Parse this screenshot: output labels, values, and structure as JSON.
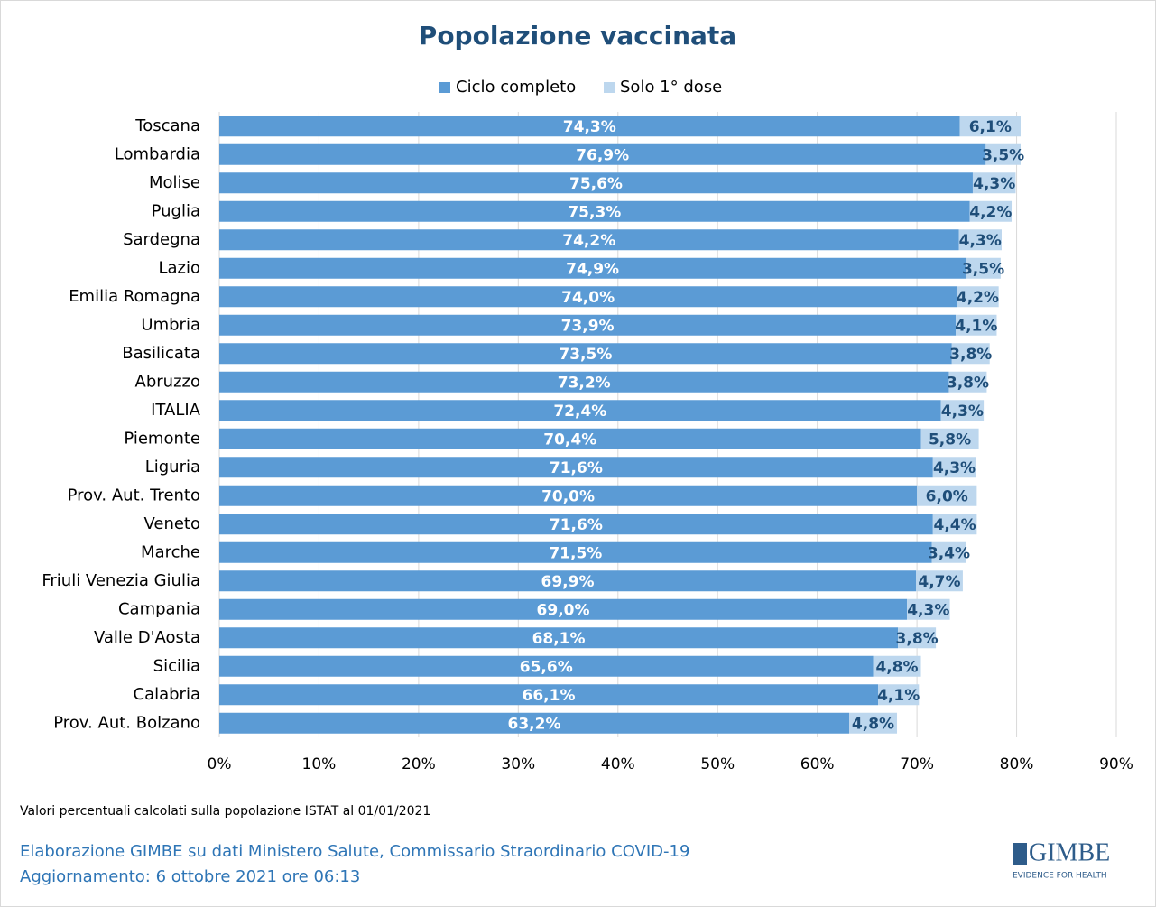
{
  "chart_data": {
    "type": "stacked-bar-horizontal",
    "title": "Popolazione vaccinata",
    "categories": [
      "Toscana",
      "Lombardia",
      "Molise",
      "Puglia",
      "Sardegna",
      "Lazio",
      "Emilia Romagna",
      "Umbria",
      "Basilicata",
      "Abruzzo",
      "ITALIA",
      "Piemonte",
      "Liguria",
      "Prov. Aut. Trento",
      "Veneto",
      "Marche",
      "Friuli Venezia Giulia",
      "Campania",
      "Valle D'Aosta",
      "Sicilia",
      "Calabria",
      "Prov. Aut. Bolzano"
    ],
    "series": [
      {
        "name": "Ciclo completo",
        "color": "#5b9bd5",
        "label_color": "#ffffff",
        "values": [
          74.3,
          76.9,
          75.6,
          75.3,
          74.2,
          74.9,
          74.0,
          73.9,
          73.5,
          73.2,
          72.4,
          70.4,
          71.6,
          70.0,
          71.6,
          71.5,
          69.9,
          69.0,
          68.1,
          65.6,
          66.1,
          63.2
        ],
        "value_labels": [
          "74,3%",
          "76,9%",
          "75,6%",
          "75,3%",
          "74,2%",
          "74,9%",
          "74,0%",
          "73,9%",
          "73,5%",
          "73,2%",
          "72,4%",
          "70,4%",
          "71,6%",
          "70,0%",
          "71,6%",
          "71,5%",
          "69,9%",
          "69,0%",
          "68,1%",
          "65,6%",
          "66,1%",
          "63,2%"
        ]
      },
      {
        "name": "Solo 1° dose",
        "color": "#bdd7ee",
        "label_color": "#1f4e79",
        "values": [
          6.1,
          3.5,
          4.3,
          4.2,
          4.3,
          3.5,
          4.2,
          4.1,
          3.8,
          3.8,
          4.3,
          5.8,
          4.3,
          6.0,
          4.4,
          3.4,
          4.7,
          4.3,
          3.8,
          4.8,
          4.1,
          4.8
        ],
        "value_labels": [
          "6,1%",
          "3,5%",
          "4,3%",
          "4,2%",
          "4,3%",
          "3,5%",
          "4,2%",
          "4,1%",
          "3,8%",
          "3,8%",
          "4,3%",
          "5,8%",
          "4,3%",
          "6,0%",
          "4,4%",
          "3,4%",
          "4,7%",
          "4,3%",
          "3,8%",
          "4,8%",
          "4,1%",
          "4,8%"
        ]
      }
    ],
    "xlim": [
      0,
      90
    ],
    "xticks": [
      {
        "value": 0,
        "label": "0%"
      },
      {
        "value": 10,
        "label": "10%"
      },
      {
        "value": 20,
        "label": "20%"
      },
      {
        "value": 30,
        "label": "30%"
      },
      {
        "value": 40,
        "label": "40%"
      },
      {
        "value": 50,
        "label": "50%"
      },
      {
        "value": 60,
        "label": "60%"
      },
      {
        "value": 70,
        "label": "70%"
      },
      {
        "value": 80,
        "label": "80%"
      },
      {
        "value": 90,
        "label": "90%"
      }
    ],
    "grid": true,
    "legend": "top",
    "note": "Valori percentuali calcolati sulla popolazione ISTAT al 01/01/2021",
    "source": "Elaborazione GIMBE su dati Ministero Salute, Commissario Straordinario COVID-19",
    "update": "Aggiornamento: 6 ottobre 2021 ore 06:13"
  },
  "logo": {
    "name": "GIMBE",
    "tagline": "EVIDENCE FOR HEALTH"
  }
}
